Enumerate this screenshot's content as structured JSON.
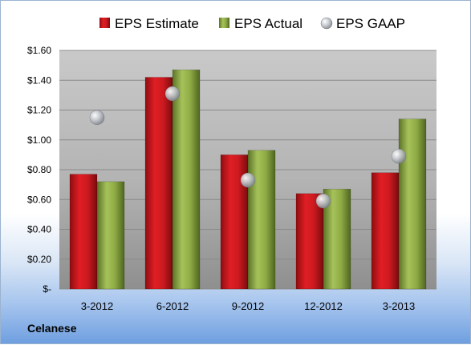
{
  "company": "Celanese",
  "chart_data": {
    "type": "bar",
    "categories": [
      "3-2012",
      "6-2012",
      "9-2012",
      "12-2012",
      "3-2013"
    ],
    "series": [
      {
        "name": "EPS Estimate",
        "kind": "bar",
        "color": "#c0161c",
        "values": [
          0.77,
          1.42,
          0.9,
          0.64,
          0.78
        ]
      },
      {
        "name": "EPS Actual",
        "kind": "bar",
        "color": "#7d9a35",
        "values": [
          0.72,
          1.47,
          0.93,
          0.67,
          1.14
        ]
      },
      {
        "name": "EPS GAAP",
        "kind": "marker",
        "color": "#b8bcc4",
        "values": [
          1.15,
          1.31,
          0.73,
          0.59,
          0.89
        ]
      }
    ],
    "ylim": [
      0,
      1.6
    ],
    "yticks": [
      0,
      0.2,
      0.4,
      0.6,
      0.8,
      1.0,
      1.2,
      1.4,
      1.6
    ],
    "ytick_labels": [
      "$-",
      "$0.20",
      "$0.40",
      "$0.60",
      "$0.80",
      "$1.00",
      "$1.20",
      "$1.40",
      "$1.60"
    ],
    "legend_position": "top",
    "grid": true
  }
}
